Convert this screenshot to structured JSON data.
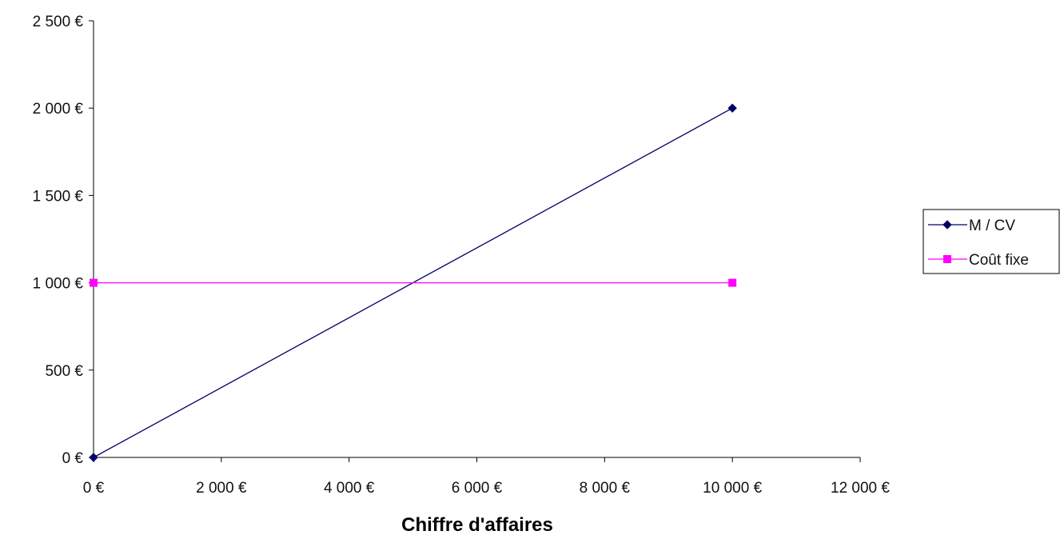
{
  "chart_data": {
    "type": "line",
    "title": "",
    "xlabel": "Chiffre d'affaires",
    "ylabel": "",
    "x": [
      0,
      10000
    ],
    "series": [
      {
        "name": "M / CV",
        "values": [
          0,
          2000
        ],
        "color": "#000066",
        "marker": "diamond"
      },
      {
        "name": "Coût fixe",
        "values": [
          1000,
          1000
        ],
        "color": "#ff00ff",
        "marker": "square"
      }
    ],
    "xlim": [
      0,
      12000
    ],
    "ylim": [
      0,
      2500
    ],
    "x_ticks": [
      0,
      2000,
      4000,
      6000,
      8000,
      10000,
      12000
    ],
    "y_ticks": [
      0,
      500,
      1000,
      1500,
      2000,
      2500
    ],
    "x_tick_labels": [
      "0 €",
      "2 000 €",
      "4 000 €",
      "6 000 €",
      "8 000 €",
      "10 000 €",
      "12 000 €"
    ],
    "y_tick_labels": [
      "0 €",
      "500 €",
      "1 000 €",
      "1 500 €",
      "2 000 €",
      "2 500 €"
    ],
    "grid": false,
    "legend_position": "right"
  }
}
